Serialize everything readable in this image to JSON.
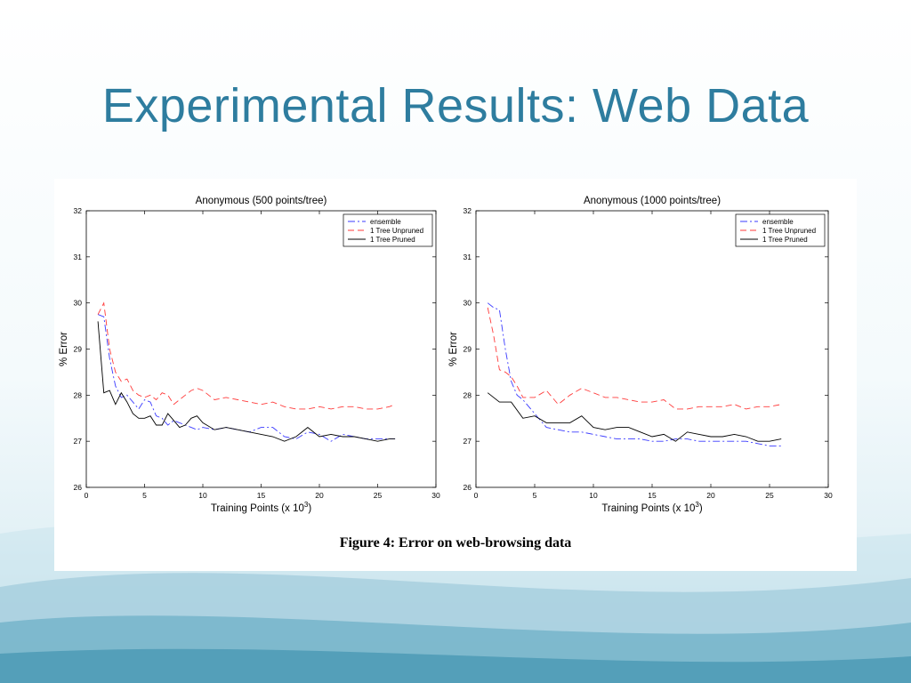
{
  "slide": {
    "title": "Experimental Results: Web Data"
  },
  "figure": {
    "caption": "Figure 4:  Error on web-browsing data"
  },
  "chart_data": [
    {
      "type": "line",
      "title": "Anonymous (500 points/tree)",
      "xlabel": "Training Points (x 10",
      "xlabel_superscript": "3",
      "xlabel_suffix": ")",
      "ylabel": "% Error",
      "xlim": [
        0,
        30
      ],
      "ylim": [
        26,
        32
      ],
      "xticks": [
        0,
        5,
        10,
        15,
        20,
        25,
        30
      ],
      "yticks": [
        26,
        27,
        28,
        29,
        30,
        31,
        32
      ],
      "grid": false,
      "legend": "top-right",
      "series": [
        {
          "name": "ensemble",
          "color": "#3b3bff",
          "style": "dashdot",
          "x": [
            1,
            1.5,
            2,
            2.5,
            3,
            3.5,
            4,
            4.5,
            5,
            5.5,
            6,
            6.5,
            7,
            7.5,
            8,
            8.5,
            9,
            9.5,
            10,
            11,
            12,
            13,
            14,
            15,
            16,
            17,
            18,
            19,
            20,
            21,
            22,
            23,
            24,
            25,
            26,
            26.5
          ],
          "y": [
            29.75,
            29.7,
            28.8,
            28.2,
            27.95,
            28.0,
            27.85,
            27.7,
            27.9,
            27.85,
            27.55,
            27.5,
            27.35,
            27.45,
            27.4,
            27.35,
            27.3,
            27.25,
            27.3,
            27.25,
            27.3,
            27.25,
            27.2,
            27.3,
            27.3,
            27.1,
            27.05,
            27.2,
            27.15,
            27.0,
            27.15,
            27.1,
            27.05,
            27.05,
            27.05,
            27.05
          ]
        },
        {
          "name": "1 Tree Unpruned",
          "color": "#ff3b3b",
          "style": "dashed",
          "x": [
            1,
            1.5,
            2,
            2.5,
            3,
            3.5,
            4,
            4.5,
            5,
            5.5,
            6,
            6.5,
            7,
            7.5,
            8,
            8.5,
            9,
            9.5,
            10,
            11,
            12,
            13,
            14,
            15,
            16,
            17,
            18,
            19,
            20,
            21,
            22,
            23,
            24,
            25,
            26,
            26.5
          ],
          "y": [
            29.75,
            30.0,
            29.0,
            28.5,
            28.3,
            28.35,
            28.1,
            28.0,
            27.95,
            28.0,
            27.9,
            28.05,
            28.0,
            27.8,
            27.9,
            28.0,
            28.1,
            28.15,
            28.1,
            27.9,
            27.95,
            27.9,
            27.85,
            27.8,
            27.85,
            27.75,
            27.7,
            27.7,
            27.75,
            27.7,
            27.75,
            27.75,
            27.7,
            27.7,
            27.75,
            27.8
          ]
        },
        {
          "name": "1 Tree Pruned",
          "color": "#000000",
          "style": "solid",
          "x": [
            1,
            1.5,
            2,
            2.5,
            3,
            3.5,
            4,
            4.5,
            5,
            5.5,
            6,
            6.5,
            7,
            7.5,
            8,
            8.5,
            9,
            9.5,
            10,
            11,
            12,
            13,
            14,
            15,
            16,
            17,
            18,
            19,
            20,
            21,
            22,
            23,
            24,
            25,
            26,
            26.5
          ],
          "y": [
            29.6,
            28.05,
            28.1,
            27.8,
            28.05,
            27.85,
            27.6,
            27.5,
            27.5,
            27.55,
            27.35,
            27.35,
            27.6,
            27.45,
            27.3,
            27.35,
            27.5,
            27.55,
            27.4,
            27.25,
            27.3,
            27.25,
            27.2,
            27.15,
            27.1,
            27.0,
            27.1,
            27.3,
            27.1,
            27.15,
            27.1,
            27.1,
            27.05,
            27.0,
            27.05,
            27.05
          ]
        }
      ]
    },
    {
      "type": "line",
      "title": "Anonymous (1000 points/tree)",
      "xlabel": "Training Points (x 10",
      "xlabel_superscript": "3",
      "xlabel_suffix": ")",
      "ylabel": "% Error",
      "xlim": [
        0,
        30
      ],
      "ylim": [
        26,
        32
      ],
      "xticks": [
        0,
        5,
        10,
        15,
        20,
        25,
        30
      ],
      "yticks": [
        26,
        27,
        28,
        29,
        30,
        31,
        32
      ],
      "grid": false,
      "legend": "top-right",
      "series": [
        {
          "name": "ensemble",
          "color": "#3b3bff",
          "style": "dashdot",
          "x": [
            1,
            1.5,
            2,
            2.5,
            3,
            3.5,
            4,
            5,
            6,
            7,
            8,
            9,
            10,
            11,
            12,
            13,
            14,
            15,
            16,
            17,
            18,
            19,
            20,
            21,
            22,
            23,
            24,
            25,
            26
          ],
          "y": [
            30.0,
            29.9,
            29.85,
            29.0,
            28.3,
            28.0,
            27.9,
            27.6,
            27.3,
            27.25,
            27.2,
            27.2,
            27.15,
            27.1,
            27.05,
            27.05,
            27.05,
            27.0,
            27.0,
            27.05,
            27.05,
            27.0,
            27.0,
            27.0,
            27.0,
            27.0,
            26.95,
            26.9,
            26.9
          ]
        },
        {
          "name": "1 Tree Unpruned",
          "color": "#ff3b3b",
          "style": "dashed",
          "x": [
            1,
            1.5,
            2,
            2.5,
            3,
            3.5,
            4,
            5,
            6,
            7,
            8,
            9,
            10,
            11,
            12,
            13,
            14,
            15,
            16,
            17,
            18,
            19,
            20,
            21,
            22,
            23,
            24,
            25,
            26
          ],
          "y": [
            29.9,
            29.3,
            28.55,
            28.5,
            28.4,
            28.2,
            27.95,
            27.95,
            28.1,
            27.8,
            28.0,
            28.15,
            28.05,
            27.95,
            27.95,
            27.9,
            27.85,
            27.85,
            27.9,
            27.7,
            27.7,
            27.75,
            27.75,
            27.75,
            27.8,
            27.7,
            27.75,
            27.75,
            27.8
          ]
        },
        {
          "name": "1 Tree Pruned",
          "color": "#000000",
          "style": "solid",
          "x": [
            1,
            2,
            3,
            4,
            5,
            6,
            7,
            8,
            9,
            10,
            11,
            12,
            13,
            14,
            15,
            16,
            17,
            18,
            19,
            20,
            21,
            22,
            23,
            24,
            25,
            26
          ],
          "y": [
            28.05,
            27.85,
            27.85,
            27.5,
            27.55,
            27.4,
            27.4,
            27.4,
            27.55,
            27.3,
            27.25,
            27.3,
            27.3,
            27.2,
            27.1,
            27.15,
            27.0,
            27.2,
            27.15,
            27.1,
            27.1,
            27.15,
            27.1,
            27.0,
            27.0,
            27.05
          ]
        }
      ]
    }
  ]
}
